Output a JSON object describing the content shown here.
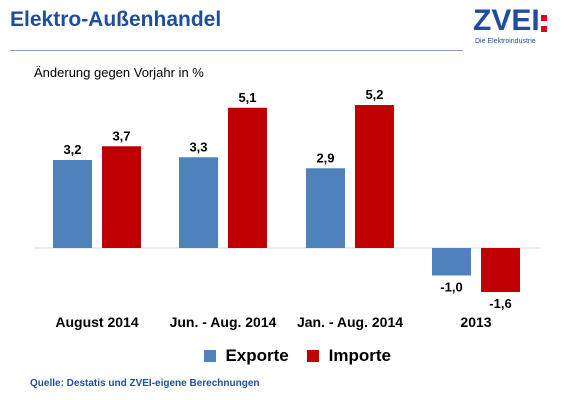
{
  "header": {
    "title": "Elektro-Außenhandel",
    "logo_mark": "ZVEI",
    "logo_tagline": "Die Elektroindustrie"
  },
  "colors": {
    "exporte": "#4f81bd",
    "importe": "#c00000",
    "title": "#1f4e9c"
  },
  "chart_data": {
    "type": "bar",
    "title": "",
    "subtitle": "Änderung gegen Vorjahr in %",
    "categories": [
      "August 2014",
      "Jun. - Aug. 2014",
      "Jan. - Aug. 2014",
      "2013"
    ],
    "series": [
      {
        "name": "Exporte",
        "values": [
          3.2,
          3.3,
          2.9,
          -1.0
        ],
        "labels": [
          "3,2",
          "3,3",
          "2,9",
          "-1,0"
        ]
      },
      {
        "name": "Importe",
        "values": [
          3.7,
          5.1,
          5.2,
          -1.6
        ],
        "labels": [
          "3,7",
          "5,1",
          "5,2",
          "-1,6"
        ]
      }
    ],
    "xlabel": "",
    "ylabel": "",
    "ylim": [
      -1.6,
      5.2
    ],
    "grid": false,
    "legend": "bottom"
  },
  "footer": {
    "source": "Quelle: Destatis und ZVEI-eigene Berechnungen"
  }
}
